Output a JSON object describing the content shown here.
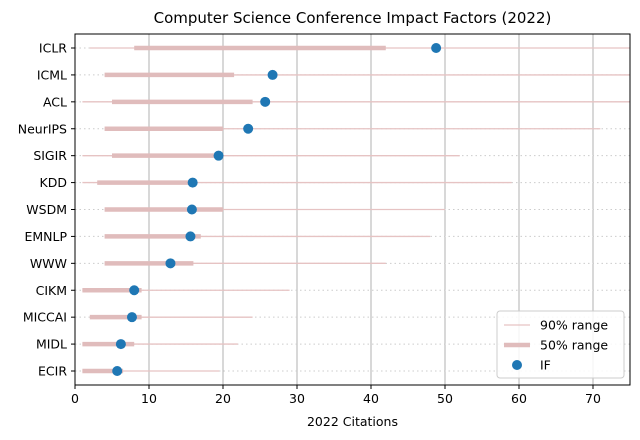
{
  "chart_data": {
    "type": "scatter",
    "title": "Computer Science Conference Impact Factors (2022)",
    "xlabel": "2022 Citations",
    "ylabel": "",
    "xlim": [
      0,
      75
    ],
    "xticks": [
      0,
      10,
      20,
      30,
      40,
      50,
      60,
      70
    ],
    "grid": "vertical-solid, horizontal-dotted",
    "legend_placement": "bottom-right",
    "colors": {
      "point": "#1f77b4",
      "range_90": "#e6c3c3",
      "range_50": "#e0bcbc",
      "grid": "#b0b0b0"
    },
    "legend": [
      {
        "key": "range_90",
        "label": "90% range"
      },
      {
        "key": "range_50",
        "label": "50% range"
      },
      {
        "key": "if",
        "label": "IF"
      }
    ],
    "categories": [
      "ICLR",
      "ICML",
      "ACL",
      "NeurIPS",
      "SIGIR",
      "KDD",
      "WSDM",
      "EMNLP",
      "WWW",
      "CIKM",
      "MICCAI",
      "MIDL",
      "ECIR"
    ],
    "series": [
      {
        "name": "IF",
        "values": [
          48.8,
          26.7,
          25.7,
          23.4,
          19.4,
          15.9,
          15.8,
          15.6,
          12.9,
          8.0,
          7.7,
          6.2,
          5.7
        ]
      },
      {
        "name": "90% range",
        "low": [
          2,
          4,
          1,
          4,
          1,
          1,
          4,
          4,
          4,
          1,
          2,
          1,
          1
        ],
        "high": [
          75,
          75,
          75,
          71,
          52,
          59,
          50,
          48,
          42,
          29,
          24,
          22,
          19.5
        ]
      },
      {
        "name": "50% range",
        "low": [
          8,
          4,
          5,
          4,
          5,
          3,
          4,
          4,
          4,
          1,
          2,
          1,
          1
        ],
        "high": [
          42,
          21.5,
          24,
          20,
          19.5,
          16,
          20,
          17,
          16,
          9,
          9,
          8,
          6.5
        ]
      }
    ]
  }
}
